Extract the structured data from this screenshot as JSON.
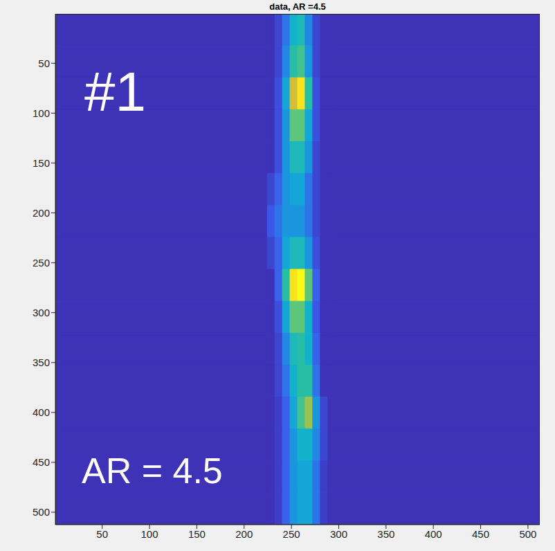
{
  "chart_data": {
    "type": "heatmap",
    "title": "data, AR =4.5",
    "annotations": [
      {
        "text": "#1"
      },
      {
        "text": "AR = 4.5"
      }
    ],
    "xlim": [
      0.5,
      512.5
    ],
    "ylim": [
      0.5,
      512.5
    ],
    "xticks": [
      50,
      100,
      150,
      200,
      250,
      300,
      350,
      400,
      450,
      500
    ],
    "yticks": [
      50,
      100,
      150,
      200,
      250,
      300,
      350,
      400,
      450,
      500
    ],
    "grid": false,
    "heatmap": {
      "x_edges": [
        0.5,
        224.5,
        232.5,
        240.5,
        248.5,
        256.5,
        264.5,
        272.5,
        280.5,
        288.5,
        296.5,
        512.5
      ],
      "y_edges": [
        0.5,
        32.5,
        64.5,
        96.5,
        128.5,
        160.5,
        192.5,
        224.5,
        256.5,
        288.5,
        320.5,
        352.5,
        384.5,
        416.5,
        448.5,
        480.5,
        512.5
      ],
      "clim": [
        0,
        1
      ],
      "cells": [
        [
          0.03,
          0.03,
          0.08,
          0.2,
          0.4,
          0.45,
          0.25,
          0.08,
          0.03,
          0.03,
          0.03
        ],
        [
          0.03,
          0.03,
          0.08,
          0.25,
          0.5,
          0.55,
          0.3,
          0.08,
          0.03,
          0.03,
          0.03
        ],
        [
          0.03,
          0.03,
          0.1,
          0.35,
          0.8,
          0.95,
          0.5,
          0.1,
          0.03,
          0.03,
          0.03
        ],
        [
          0.03,
          0.03,
          0.1,
          0.3,
          0.6,
          0.6,
          0.35,
          0.1,
          0.03,
          0.03,
          0.03
        ],
        [
          0.03,
          0.03,
          0.1,
          0.3,
          0.45,
          0.45,
          0.3,
          0.08,
          0.03,
          0.03,
          0.03
        ],
        [
          0.03,
          0.08,
          0.15,
          0.3,
          0.35,
          0.35,
          0.2,
          0.08,
          0.03,
          0.03,
          0.03
        ],
        [
          0.03,
          0.12,
          0.2,
          0.3,
          0.3,
          0.3,
          0.2,
          0.08,
          0.03,
          0.03,
          0.03
        ],
        [
          0.03,
          0.08,
          0.15,
          0.35,
          0.45,
          0.45,
          0.3,
          0.1,
          0.03,
          0.03,
          0.03
        ],
        [
          0.03,
          0.03,
          0.15,
          0.5,
          0.95,
          1.0,
          0.6,
          0.15,
          0.03,
          0.03,
          0.03
        ],
        [
          0.03,
          0.03,
          0.1,
          0.35,
          0.6,
          0.6,
          0.4,
          0.12,
          0.03,
          0.03,
          0.03
        ],
        [
          0.03,
          0.03,
          0.08,
          0.25,
          0.45,
          0.5,
          0.4,
          0.15,
          0.03,
          0.03,
          0.03
        ],
        [
          0.03,
          0.03,
          0.08,
          0.2,
          0.4,
          0.5,
          0.5,
          0.2,
          0.03,
          0.03,
          0.03
        ],
        [
          0.03,
          0.03,
          0.06,
          0.15,
          0.35,
          0.55,
          0.7,
          0.3,
          0.08,
          0.03,
          0.03
        ],
        [
          0.03,
          0.03,
          0.06,
          0.15,
          0.3,
          0.4,
          0.4,
          0.25,
          0.08,
          0.03,
          0.03
        ],
        [
          0.03,
          0.03,
          0.06,
          0.15,
          0.3,
          0.35,
          0.35,
          0.2,
          0.06,
          0.03,
          0.03
        ],
        [
          0.03,
          0.03,
          0.06,
          0.15,
          0.3,
          0.35,
          0.35,
          0.2,
          0.06,
          0.03,
          0.03
        ]
      ]
    }
  }
}
